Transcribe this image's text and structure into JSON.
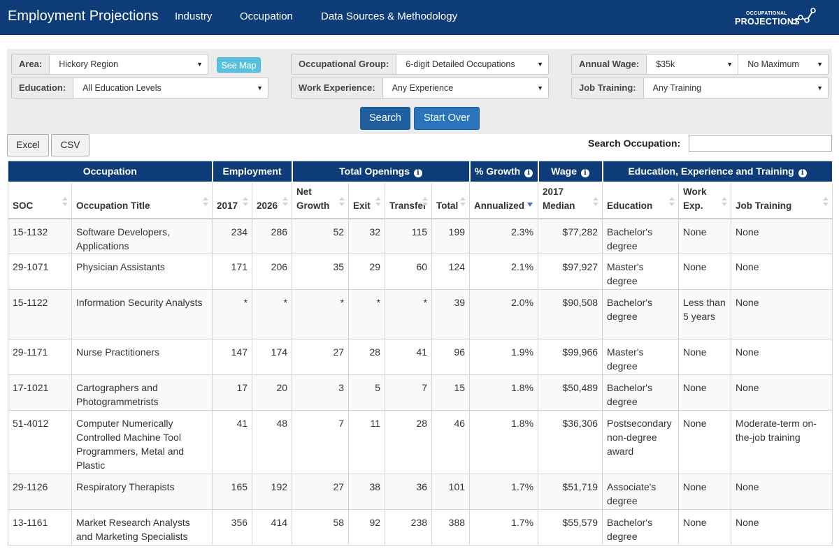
{
  "nav": {
    "brand": "Employment Projections",
    "links": [
      "Industry",
      "Occupation",
      "Data Sources & Methodology"
    ],
    "logo_top": "OCCUPATIONAL",
    "logo_bottom": "PROJECTIONS"
  },
  "filters": {
    "area": {
      "label": "Area:",
      "value": "Hickory Region"
    },
    "see_map": "See Map",
    "education": {
      "label": "Education:",
      "value": "All Education Levels"
    },
    "occupational_group": {
      "label": "Occupational Group:",
      "value": "6-digit Detailed Occupations"
    },
    "work_experience": {
      "label": "Work Experience:",
      "value": "Any Experience"
    },
    "annual_wage": {
      "label": "Annual Wage:",
      "min": "$35k",
      "max": "No Maximum"
    },
    "job_training": {
      "label": "Job Training:",
      "value": "Any Training"
    },
    "search_button": "Search",
    "start_over_button": "Start Over"
  },
  "export": {
    "excel": "Excel",
    "csv": "CSV"
  },
  "search_occupation": {
    "label": "Search Occupation:",
    "value": ""
  },
  "table": {
    "groups": {
      "occupation": "Occupation",
      "employment": "Employment",
      "total_openings": "Total Openings",
      "growth": "% Growth",
      "wage": "Wage",
      "education_training": "Education, Experience and Training"
    },
    "columns": {
      "soc": "SOC",
      "title": "Occupation Title",
      "emp2017": "2017",
      "emp2026": "2026",
      "net_growth": "Net Growth",
      "exit": "Exit",
      "transfer": "Transfer",
      "total": "Total",
      "annualized": "Annualized",
      "median": "2017 Median",
      "education": "Education",
      "work_exp": "Work Exp.",
      "job_training": "Job Training"
    },
    "rows": [
      {
        "soc": "15-1132",
        "title": "Software Developers, Applications",
        "emp2017": "234",
        "emp2026": "286",
        "net": "52",
        "exit": "32",
        "transfer": "115",
        "total": "199",
        "growth": "2.3%",
        "wage": "$77,282",
        "education": "Bachelor's degree",
        "work_exp": "None",
        "training": "None"
      },
      {
        "soc": "29-1071",
        "title": "Physician Assistants",
        "emp2017": "171",
        "emp2026": "206",
        "net": "35",
        "exit": "29",
        "transfer": "60",
        "total": "124",
        "growth": "2.1%",
        "wage": "$97,927",
        "education": "Master's degree",
        "work_exp": "None",
        "training": "None"
      },
      {
        "soc": "15-1122",
        "title": "Information Security Analysts",
        "emp2017": "*",
        "emp2026": "*",
        "net": "*",
        "exit": "*",
        "transfer": "*",
        "total": "39",
        "growth": "2.0%",
        "wage": "$90,508",
        "education": "Bachelor's degree",
        "work_exp": "Less than 5 years",
        "training": "None"
      },
      {
        "soc": "29-1171",
        "title": "Nurse Practitioners",
        "emp2017": "147",
        "emp2026": "174",
        "net": "27",
        "exit": "28",
        "transfer": "41",
        "total": "96",
        "growth": "1.9%",
        "wage": "$99,966",
        "education": "Master's degree",
        "work_exp": "None",
        "training": "None"
      },
      {
        "soc": "17-1021",
        "title": "Cartographers and Photogrammetrists",
        "emp2017": "17",
        "emp2026": "20",
        "net": "3",
        "exit": "5",
        "transfer": "7",
        "total": "15",
        "growth": "1.8%",
        "wage": "$50,489",
        "education": "Bachelor's degree",
        "work_exp": "None",
        "training": "None"
      },
      {
        "soc": "51-4012",
        "title": "Computer Numerically Controlled Machine Tool Programmers, Metal and Plastic",
        "emp2017": "41",
        "emp2026": "48",
        "net": "7",
        "exit": "11",
        "transfer": "28",
        "total": "46",
        "growth": "1.8%",
        "wage": "$36,306",
        "education": "Postsecondary non-degree award",
        "work_exp": "None",
        "training": "Moderate-term on-the-job training"
      },
      {
        "soc": "29-1126",
        "title": "Respiratory Therapists",
        "emp2017": "165",
        "emp2026": "192",
        "net": "27",
        "exit": "38",
        "transfer": "36",
        "total": "101",
        "growth": "1.7%",
        "wage": "$51,719",
        "education": "Associate's degree",
        "work_exp": "None",
        "training": "None"
      },
      {
        "soc": "13-1161",
        "title": "Market Research Analysts and Marketing Specialists",
        "emp2017": "356",
        "emp2026": "414",
        "net": "58",
        "exit": "92",
        "transfer": "238",
        "total": "388",
        "growth": "1.7%",
        "wage": "$55,579",
        "education": "Bachelor's degree",
        "work_exp": "None",
        "training": "None"
      }
    ]
  }
}
